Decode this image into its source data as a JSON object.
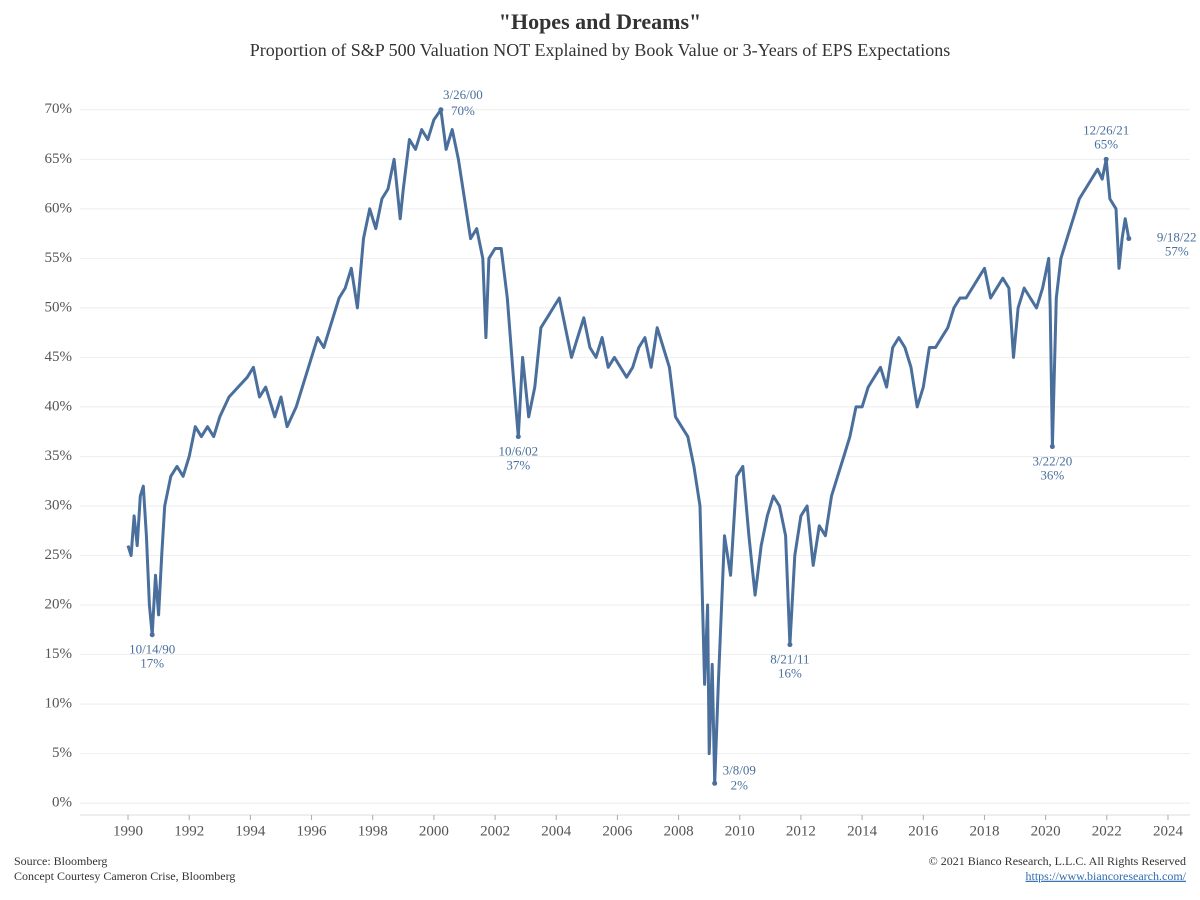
{
  "chart_data": {
    "type": "line",
    "title": "\"Hopes and Dreams\"",
    "subtitle": "Proportion of S&P 500 Valuation NOT Explained by Book Value or 3-Years of EPS Expectations",
    "xlim": [
      1988.43,
      2024.72
    ],
    "xticks": [
      1990,
      1992,
      1994,
      1996,
      1998,
      2000,
      2002,
      2004,
      2006,
      2008,
      2010,
      2012,
      2014,
      2016,
      2018,
      2020,
      2022,
      2024
    ],
    "ylim": [
      -1.2,
      72.2
    ],
    "yticks": [
      {
        "value": 0,
        "label": "0%"
      },
      {
        "value": 5,
        "label": "5%"
      },
      {
        "value": 10,
        "label": "10%"
      },
      {
        "value": 15,
        "label": "15%"
      },
      {
        "value": 20,
        "label": "20%"
      },
      {
        "value": 25,
        "label": "25%"
      },
      {
        "value": 30,
        "label": "30%"
      },
      {
        "value": 35,
        "label": "35%"
      },
      {
        "value": 40,
        "label": "40%"
      },
      {
        "value": 45,
        "label": "45%"
      },
      {
        "value": 50,
        "label": "50%"
      },
      {
        "value": 55,
        "label": "55%"
      },
      {
        "value": 60,
        "label": "60%"
      },
      {
        "value": 65,
        "label": "65%"
      },
      {
        "value": 70,
        "label": "70%"
      }
    ],
    "grid": true,
    "color": "#4a6f9c",
    "x": [
      1990.0,
      1990.1,
      1990.2,
      1990.3,
      1990.4,
      1990.5,
      1990.6,
      1990.7,
      1990.79,
      1990.9,
      1991.0,
      1991.1,
      1991.2,
      1991.4,
      1991.6,
      1991.8,
      1992.0,
      1992.2,
      1992.4,
      1992.6,
      1992.8,
      1993.0,
      1993.3,
      1993.6,
      1993.9,
      1994.1,
      1994.3,
      1994.5,
      1994.8,
      1995.0,
      1995.2,
      1995.5,
      1995.8,
      1996.0,
      1996.2,
      1996.4,
      1996.6,
      1996.9,
      1997.1,
      1997.3,
      1997.5,
      1997.7,
      1997.9,
      1998.1,
      1998.3,
      1998.5,
      1998.7,
      1998.9,
      1999.0,
      1999.2,
      1999.4,
      1999.6,
      1999.8,
      2000.0,
      2000.23,
      2000.4,
      2000.6,
      2000.8,
      2001.0,
      2001.2,
      2001.4,
      2001.6,
      2001.7,
      2001.8,
      2002.0,
      2002.2,
      2002.4,
      2002.6,
      2002.76,
      2002.9,
      2003.1,
      2003.3,
      2003.5,
      2003.7,
      2003.9,
      2004.1,
      2004.3,
      2004.5,
      2004.7,
      2004.9,
      2005.1,
      2005.3,
      2005.5,
      2005.7,
      2005.9,
      2006.1,
      2006.3,
      2006.5,
      2006.7,
      2006.9,
      2007.1,
      2007.3,
      2007.5,
      2007.7,
      2007.9,
      2008.1,
      2008.3,
      2008.5,
      2008.7,
      2008.85,
      2008.95,
      2009.0,
      2009.1,
      2009.18,
      2009.3,
      2009.5,
      2009.7,
      2009.9,
      2010.1,
      2010.3,
      2010.5,
      2010.7,
      2010.9,
      2011.1,
      2011.3,
      2011.5,
      2011.64,
      2011.8,
      2012.0,
      2012.2,
      2012.4,
      2012.6,
      2012.8,
      2013.0,
      2013.2,
      2013.4,
      2013.6,
      2013.8,
      2014.0,
      2014.2,
      2014.4,
      2014.6,
      2014.8,
      2015.0,
      2015.2,
      2015.4,
      2015.6,
      2015.8,
      2016.0,
      2016.2,
      2016.4,
      2016.6,
      2016.8,
      2017.0,
      2017.2,
      2017.4,
      2017.6,
      2017.8,
      2018.0,
      2018.2,
      2018.4,
      2018.6,
      2018.8,
      2018.95,
      2019.1,
      2019.3,
      2019.5,
      2019.7,
      2019.9,
      2020.1,
      2020.15,
      2020.22,
      2020.35,
      2020.5,
      2020.7,
      2020.9,
      2021.1,
      2021.3,
      2021.5,
      2021.7,
      2021.85,
      2021.98,
      2022.1,
      2022.3,
      2022.4,
      2022.5,
      2022.6,
      2022.72
    ],
    "values": [
      26,
      25,
      29,
      26,
      31,
      32,
      27,
      20,
      17,
      23,
      19,
      25,
      30,
      33,
      34,
      33,
      35,
      38,
      37,
      38,
      37,
      39,
      41,
      42,
      43,
      44,
      41,
      42,
      39,
      41,
      38,
      40,
      43,
      45,
      47,
      46,
      48,
      51,
      52,
      54,
      50,
      57,
      60,
      58,
      61,
      62,
      65,
      59,
      62,
      67,
      66,
      68,
      67,
      69,
      70,
      66,
      68,
      65,
      61,
      57,
      58,
      55,
      47,
      55,
      56,
      56,
      51,
      43,
      37,
      45,
      39,
      42,
      48,
      49,
      50,
      51,
      48,
      45,
      47,
      49,
      46,
      45,
      47,
      44,
      45,
      44,
      43,
      44,
      46,
      47,
      44,
      48,
      46,
      44,
      39,
      38,
      37,
      34,
      30,
      12,
      20,
      5,
      14,
      2,
      12,
      27,
      23,
      33,
      34,
      27,
      21,
      26,
      29,
      31,
      30,
      27,
      16,
      25,
      29,
      30,
      24,
      28,
      27,
      31,
      33,
      35,
      37,
      40,
      40,
      42,
      43,
      44,
      42,
      46,
      47,
      46,
      44,
      40,
      42,
      46,
      46,
      47,
      48,
      50,
      51,
      51,
      52,
      53,
      54,
      51,
      52,
      53,
      52,
      45,
      50,
      52,
      51,
      50,
      52,
      55,
      50,
      36,
      51,
      55,
      57,
      59,
      61,
      62,
      63,
      64,
      63,
      65,
      61,
      60,
      54,
      57,
      59,
      57
    ],
    "annotations": [
      {
        "text": "10/14/90",
        "x": 1990.79,
        "value": 17,
        "value_label": "17%",
        "placement": "below"
      },
      {
        "text": "3/26/00",
        "x": 2000.23,
        "value": 70,
        "value_label": "70%",
        "placement": "above"
      },
      {
        "text": "10/6/02",
        "x": 2002.76,
        "value": 37,
        "value_label": "37%",
        "placement": "below"
      },
      {
        "text": "3/8/09",
        "x": 2009.18,
        "value": 2,
        "value_label": "2%",
        "placement": "right"
      },
      {
        "text": "8/21/11",
        "x": 2011.64,
        "value": 16,
        "value_label": "16%",
        "placement": "below"
      },
      {
        "text": "3/22/20",
        "x": 2020.22,
        "value": 36,
        "value_label": "36%",
        "placement": "below"
      },
      {
        "text": "12/26/21",
        "x": 2021.98,
        "value": 65,
        "value_label": "65%",
        "placement": "above"
      },
      {
        "text": "9/18/22",
        "x": 2022.72,
        "value": 57,
        "value_label": "57%",
        "placement": "right"
      }
    ]
  },
  "footer": {
    "source": "Source: Bloomberg",
    "concept": "Concept Courtesy Cameron Crise, Bloomberg",
    "copyright": "© 2021 Bianco Research, L.L.C. All Rights Reserved",
    "url": "https://www.biancoresearch.com/"
  }
}
